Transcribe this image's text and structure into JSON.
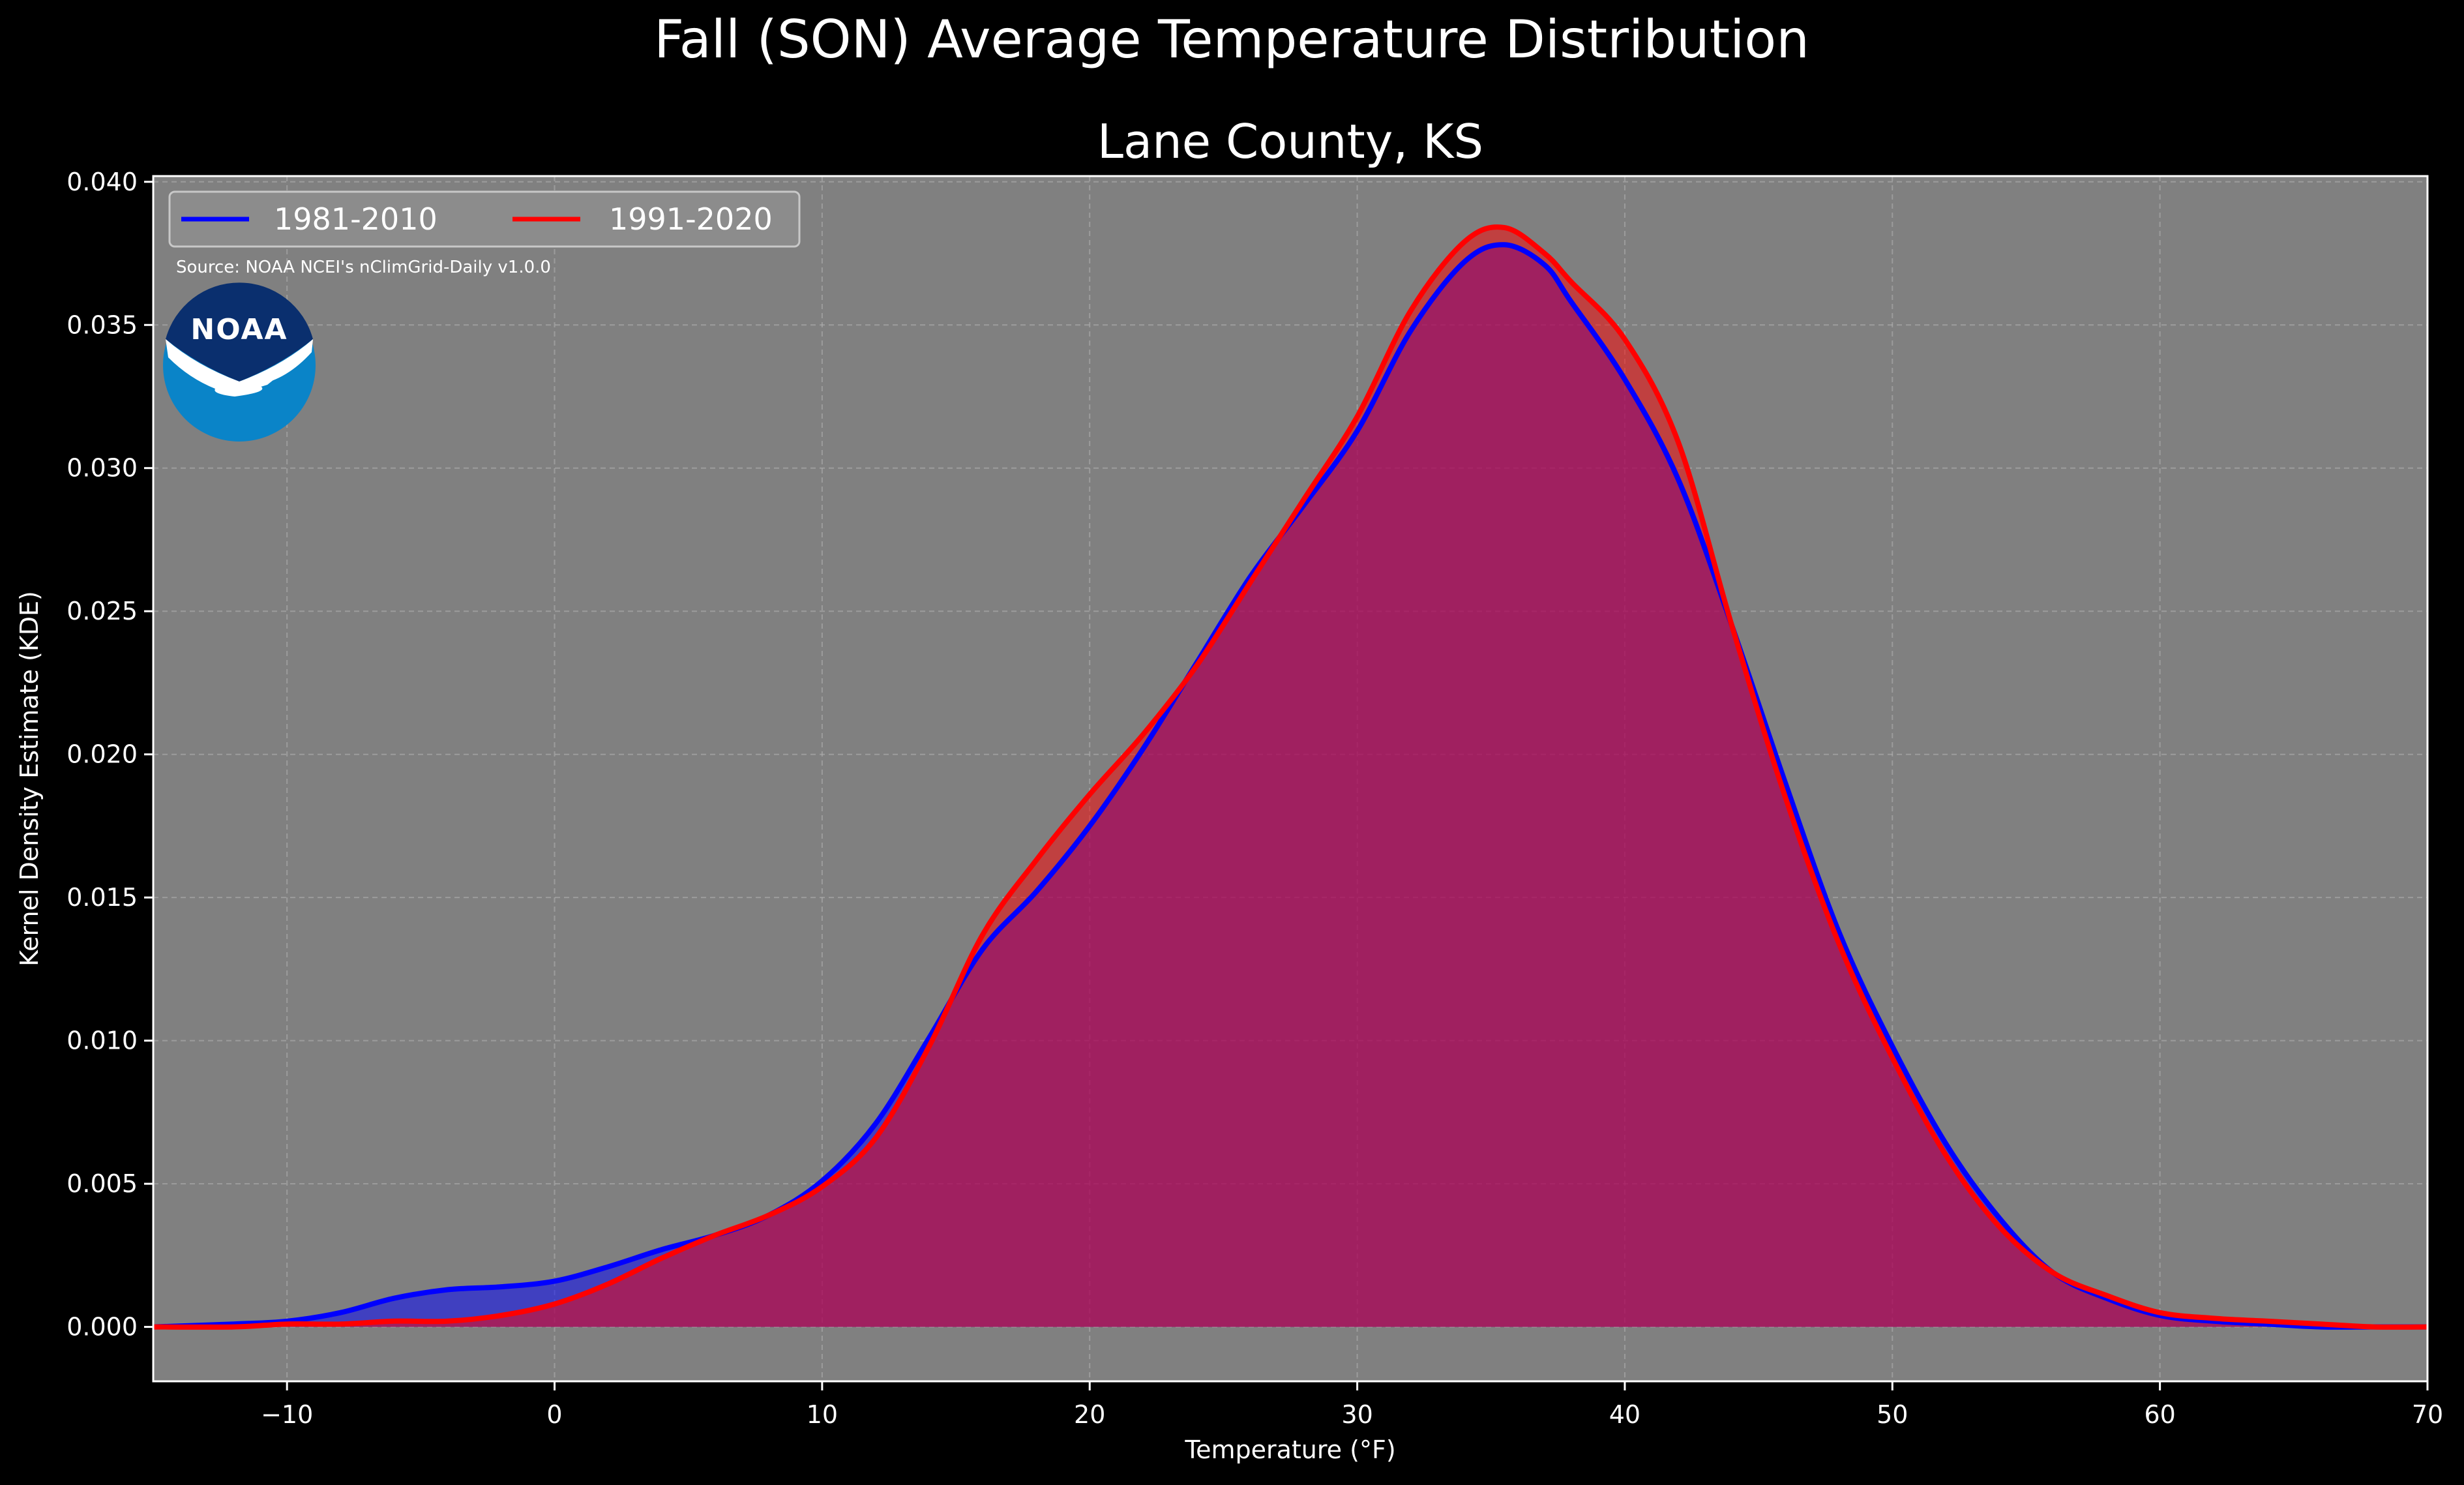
{
  "suptitle": "Fall (SON) Average Temperature Distribution",
  "title": "Lane County, KS",
  "source_note": "Source: NOAA NCEI's nClimGrid-Daily v1.0.0",
  "logo": {
    "icon": "noaa-logo",
    "text": "NOAA",
    "colors": {
      "outer": "#0a84c8",
      "inner": "#0a2f6e",
      "wave": "#ffffff"
    }
  },
  "colors": {
    "background": "#000000",
    "plot_bg": "#808080",
    "grid": "#b0b0b0",
    "text": "#ffffff"
  },
  "chart_data": {
    "type": "area",
    "xlabel": "Temperature (°F)",
    "ylabel": "Kernel Density Estimate (KDE)",
    "xlim": [
      -15,
      70
    ],
    "ylim": [
      -0.0019,
      0.0402
    ],
    "xticks": [
      "−10",
      "0",
      "10",
      "20",
      "30",
      "40",
      "50",
      "60",
      "70"
    ],
    "yticks": [
      "0.000",
      "0.005",
      "0.010",
      "0.015",
      "0.020",
      "0.025",
      "0.030",
      "0.035",
      "0.040"
    ],
    "grid": true,
    "legend_position": "top-left",
    "series": [
      {
        "name": "1981-2010",
        "color": "#0000ff",
        "fill": "#0000ff",
        "x": [
          -15,
          -12,
          -10,
          -8,
          -6,
          -4,
          -2,
          0,
          2,
          4,
          6,
          8,
          10,
          12,
          14,
          16,
          18,
          20,
          22,
          24,
          26,
          28,
          30,
          32,
          34,
          35.5,
          37,
          38,
          40,
          42,
          44,
          46,
          48,
          50,
          52,
          54,
          56,
          58,
          60,
          62,
          64,
          66,
          68,
          70
        ],
        "y": [
          0.0,
          0.0001,
          0.0002,
          0.0005,
          0.001,
          0.0013,
          0.0014,
          0.0016,
          0.0021,
          0.0027,
          0.0032,
          0.0039,
          0.0051,
          0.0071,
          0.0101,
          0.0132,
          0.0152,
          0.0175,
          0.0202,
          0.0232,
          0.0262,
          0.0287,
          0.0313,
          0.0348,
          0.0372,
          0.0378,
          0.0371,
          0.0358,
          0.0331,
          0.0296,
          0.0245,
          0.019,
          0.0138,
          0.0098,
          0.0064,
          0.0038,
          0.0019,
          0.001,
          0.0004,
          0.0002,
          0.0001,
          0.0,
          0.0,
          0.0
        ]
      },
      {
        "name": "1991-2020",
        "color": "#ff0000",
        "fill": "#ff0000",
        "x": [
          -15,
          -12,
          -10,
          -8,
          -6,
          -4,
          -2,
          0,
          2,
          4,
          6,
          8,
          10,
          12,
          14,
          16,
          18,
          20,
          22,
          24,
          26,
          28,
          30,
          32,
          34,
          35.5,
          37,
          38,
          40,
          42,
          44,
          46,
          48,
          50,
          52,
          54,
          56,
          58,
          60,
          62,
          64,
          66,
          68,
          70
        ],
        "y": [
          0.0,
          0.0,
          0.0001,
          0.0001,
          0.0002,
          0.0002,
          0.0004,
          0.0008,
          0.0015,
          0.0024,
          0.0032,
          0.0039,
          0.0049,
          0.0066,
          0.0098,
          0.0137,
          0.0163,
          0.0186,
          0.0207,
          0.0231,
          0.026,
          0.0289,
          0.0318,
          0.0355,
          0.0379,
          0.0384,
          0.0375,
          0.0365,
          0.0345,
          0.0309,
          0.0245,
          0.0185,
          0.0134,
          0.0094,
          0.006,
          0.0035,
          0.0019,
          0.0011,
          0.0005,
          0.0003,
          0.0002,
          0.0001,
          0.0,
          0.0
        ]
      }
    ]
  }
}
